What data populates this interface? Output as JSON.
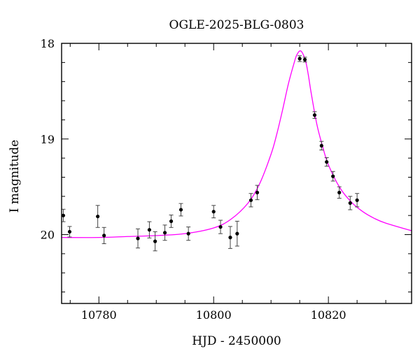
{
  "chart_data": {
    "type": "scatter",
    "title": "OGLE-2025-BLG-0803",
    "xlabel": "HJD - 2450000",
    "ylabel": "I magnitude",
    "xlim": [
      10773.5,
      10834.5
    ],
    "ylim": [
      20.72,
      18.0
    ],
    "y_inverted": true,
    "x_ticks": [
      10780,
      10800,
      10820
    ],
    "x_tick_labels": [
      "10780",
      "10800",
      "10820"
    ],
    "y_ticks": [
      18,
      19,
      20
    ],
    "y_tick_labels": [
      "18",
      "19",
      "20"
    ],
    "grid": false,
    "legend": "none",
    "colors": {
      "points": "#000000",
      "model": "#ff00ff"
    },
    "series": [
      {
        "kind": "points-with-errorbars",
        "x": [
          10773.8,
          10774.9,
          10779.8,
          10780.9,
          10786.8,
          10788.8,
          10789.8,
          10791.5,
          10792.6,
          10794.3,
          10795.6,
          10800.0,
          10801.2,
          10802.9,
          10804.1,
          10806.5,
          10807.6,
          10815.0,
          10815.9,
          10817.6,
          10818.8,
          10819.7,
          10820.8,
          10821.9,
          10823.8,
          10825.0
        ],
        "y": [
          19.8,
          19.97,
          19.81,
          20.01,
          20.04,
          19.95,
          20.07,
          19.98,
          19.86,
          19.74,
          19.99,
          19.76,
          19.92,
          20.03,
          19.99,
          19.64,
          19.56,
          18.16,
          18.17,
          18.75,
          19.07,
          19.24,
          19.39,
          19.56,
          19.67,
          19.64
        ],
        "yerr": [
          0.065,
          0.055,
          0.115,
          0.085,
          0.1,
          0.085,
          0.1,
          0.08,
          0.065,
          0.065,
          0.07,
          0.065,
          0.07,
          0.115,
          0.13,
          0.07,
          0.075,
          0.03,
          0.025,
          0.035,
          0.045,
          0.045,
          0.05,
          0.06,
          0.07,
          0.07
        ]
      },
      {
        "kind": "model-curve",
        "x": [
          10773.5,
          10780,
          10785,
          10790,
          10795,
          10800,
          10803,
          10806,
          10808,
          10810,
          10811,
          10812,
          10813,
          10814,
          10814.5,
          10815.2,
          10816,
          10816.5,
          10817,
          10818,
          10819,
          10820,
          10822,
          10824,
          10826,
          10828,
          10830,
          10834.5
        ],
        "y": [
          20.03,
          20.03,
          20.02,
          20.01,
          19.99,
          19.93,
          19.84,
          19.67,
          19.47,
          19.16,
          18.95,
          18.7,
          18.43,
          18.21,
          18.12,
          18.08,
          18.18,
          18.33,
          18.52,
          18.85,
          19.08,
          19.27,
          19.51,
          19.66,
          19.76,
          19.83,
          19.88,
          19.96
        ]
      }
    ]
  }
}
